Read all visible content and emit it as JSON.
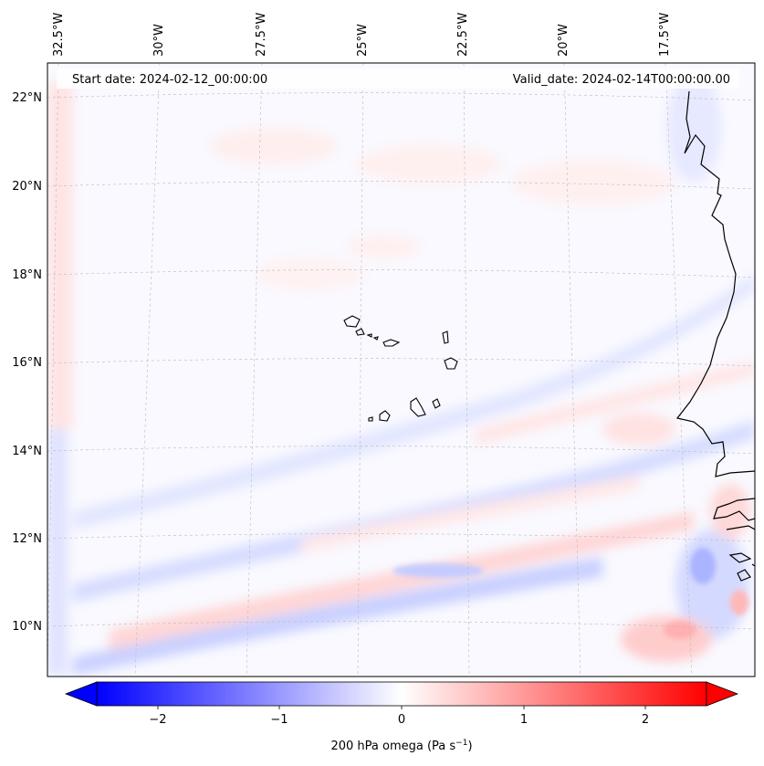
{
  "header": {
    "start_date": "Start date: 2024-02-12_00:00:00",
    "valid_date": "Valid_date: 2024-02-14T00:00:00.00"
  },
  "axes": {
    "lon_ticks": [
      "32.5°W",
      "30°W",
      "27.5°W",
      "25°W",
      "22.5°W",
      "20°W",
      "17.5°W"
    ],
    "lat_ticks": [
      "22°N",
      "20°N",
      "18°N",
      "16°N",
      "14°N",
      "12°N",
      "10°N"
    ]
  },
  "colorbar": {
    "ticks": [
      "−2",
      "−1",
      "0",
      "1",
      "2"
    ],
    "label": "200 hPa omega (Pa s",
    "label_exp": "−1",
    "label_close": ")",
    "min": -2.5,
    "max": 2.5,
    "low_color": "#0000ff",
    "mid_color": "#ffffff",
    "high_color": "#ff0000"
  },
  "map": {
    "field": "200 hPa omega",
    "units": "Pa s−1"
  }
}
